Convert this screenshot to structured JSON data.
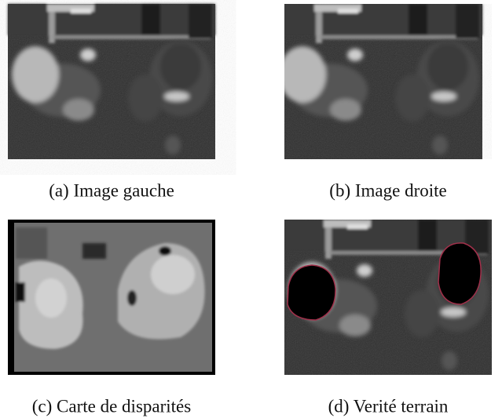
{
  "figure": {
    "panels": [
      {
        "caption": "(a) Image gauche"
      },
      {
        "caption": "(b) Image droite"
      },
      {
        "caption": "(c) Carte de disparités"
      },
      {
        "caption": "(d) Verité terrain"
      }
    ]
  }
}
